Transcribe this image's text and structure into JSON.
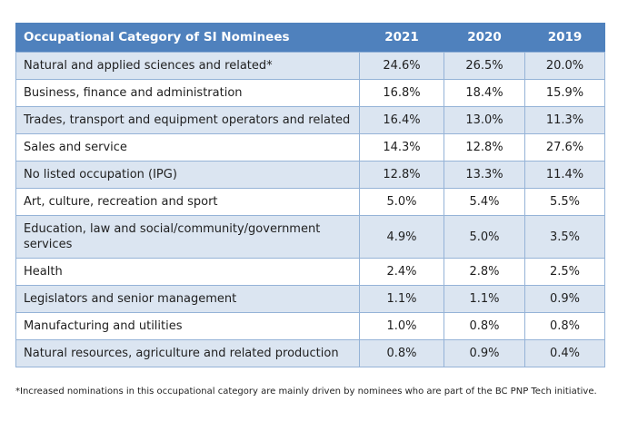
{
  "colors": {
    "header_bg": "#4f81bd",
    "header_text": "#ffffff",
    "band_bg": "#dbe5f1",
    "border": "#95b3d7",
    "text": "#1f1f1f"
  },
  "table": {
    "header": {
      "category": "Occupational Category of SI Nominees",
      "years": [
        "2021",
        "2020",
        "2019"
      ]
    },
    "rows": [
      {
        "label": "Natural and applied sciences and related*",
        "values": [
          "24.6%",
          "26.5%",
          "20.0%"
        ]
      },
      {
        "label": "Business, finance and administration",
        "values": [
          "16.8%",
          "18.4%",
          "15.9%"
        ]
      },
      {
        "label": "Trades, transport and equipment operators and related",
        "values": [
          "16.4%",
          "13.0%",
          "11.3%"
        ]
      },
      {
        "label": "Sales and service",
        "values": [
          "14.3%",
          "12.8%",
          "27.6%"
        ]
      },
      {
        "label": "No listed occupation (IPG)",
        "values": [
          "12.8%",
          "13.3%",
          "11.4%"
        ]
      },
      {
        "label": "Art, culture, recreation and sport",
        "values": [
          "5.0%",
          "5.4%",
          "5.5%"
        ]
      },
      {
        "label": "Education, law and social/community/government services",
        "values": [
          "4.9%",
          "5.0%",
          "3.5%"
        ]
      },
      {
        "label": "Health",
        "values": [
          "2.4%",
          "2.8%",
          "2.5%"
        ]
      },
      {
        "label": "Legislators and senior management",
        "values": [
          "1.1%",
          "1.1%",
          "0.9%"
        ]
      },
      {
        "label": "Manufacturing and utilities",
        "values": [
          "1.0%",
          "0.8%",
          "0.8%"
        ]
      },
      {
        "label": "Natural resources, agriculture and related production",
        "values": [
          "0.8%",
          "0.9%",
          "0.4%"
        ]
      }
    ],
    "footnote": "*Increased nominations in this occupational category are mainly driven by nominees who are part of the BC PNP Tech initiative."
  }
}
